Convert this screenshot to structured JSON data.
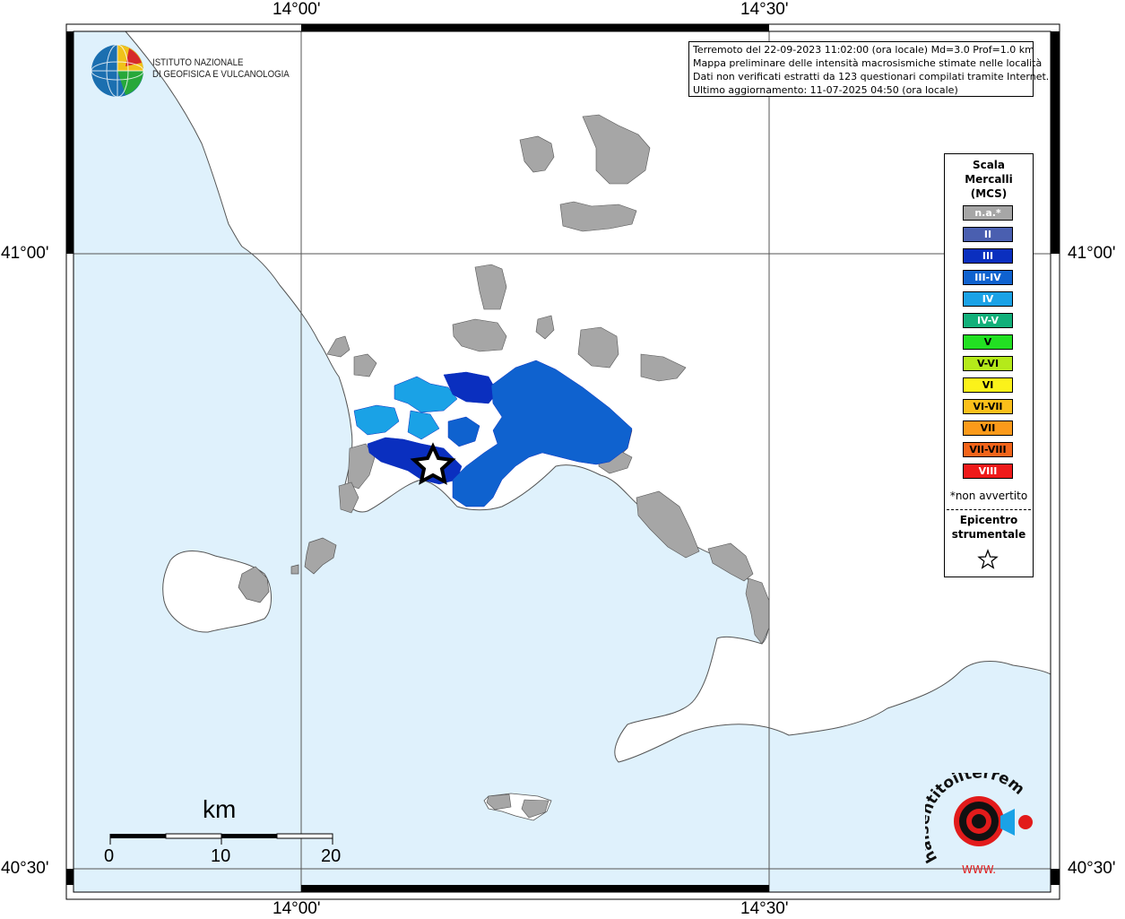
{
  "axes": {
    "lon_labels": [
      "14°00'",
      "14°30'"
    ],
    "lat_labels": [
      "41°00'",
      "40°30'"
    ]
  },
  "info": {
    "lines": [
      "Terremoto del 22-09-2023 11:02:00 (ora locale) Md=3.0 Prof=1.0 km",
      "Mappa preliminare delle intensità macrosismiche stimate nelle località",
      "Dati non verificati estratti da 123 questionari compilati tramite Internet.",
      "Ultimo aggiornamento: 11-07-2025 04:50 (ora locale)"
    ]
  },
  "logo": {
    "line1": "ISTITUTO NAZIONALE",
    "line2": "DI GEOFISICA E VULCANOLOGIA"
  },
  "legend": {
    "title": [
      "Scala",
      "Mercalli",
      "(MCS)"
    ],
    "items": [
      {
        "label": "n.a.*",
        "color": "#a6a6a6"
      },
      {
        "label": "II",
        "color": "#4a5fb0"
      },
      {
        "label": "III",
        "color": "#0a2fbf"
      },
      {
        "label": "III-IV",
        "color": "#0f62cf"
      },
      {
        "label": "IV",
        "color": "#1aa2e6"
      },
      {
        "label": "IV-V",
        "color": "#12b07a"
      },
      {
        "label": "V",
        "color": "#22e022"
      },
      {
        "label": "V-VI",
        "color": "#b4ea1a"
      },
      {
        "label": "VI",
        "color": "#fbf21a"
      },
      {
        "label": "VI-VII",
        "color": "#fbbf1a"
      },
      {
        "label": "VII",
        "color": "#fb9a1a"
      },
      {
        "label": "VII-VIII",
        "color": "#f2641a"
      },
      {
        "label": "VIII",
        "color": "#ef1a1a"
      }
    ],
    "note": "*non avvertito",
    "epicenter": [
      "Epicentro",
      "strumentale"
    ]
  },
  "scale": {
    "title": "km",
    "ticks": [
      "0",
      "10",
      "20"
    ]
  },
  "watermark": {
    "text": "haisentitoilterremoto.it",
    "url": "WWW."
  },
  "colors": {
    "sea": "#dff1fc",
    "land": "#ffffff",
    "na": "#a6a6a6"
  }
}
